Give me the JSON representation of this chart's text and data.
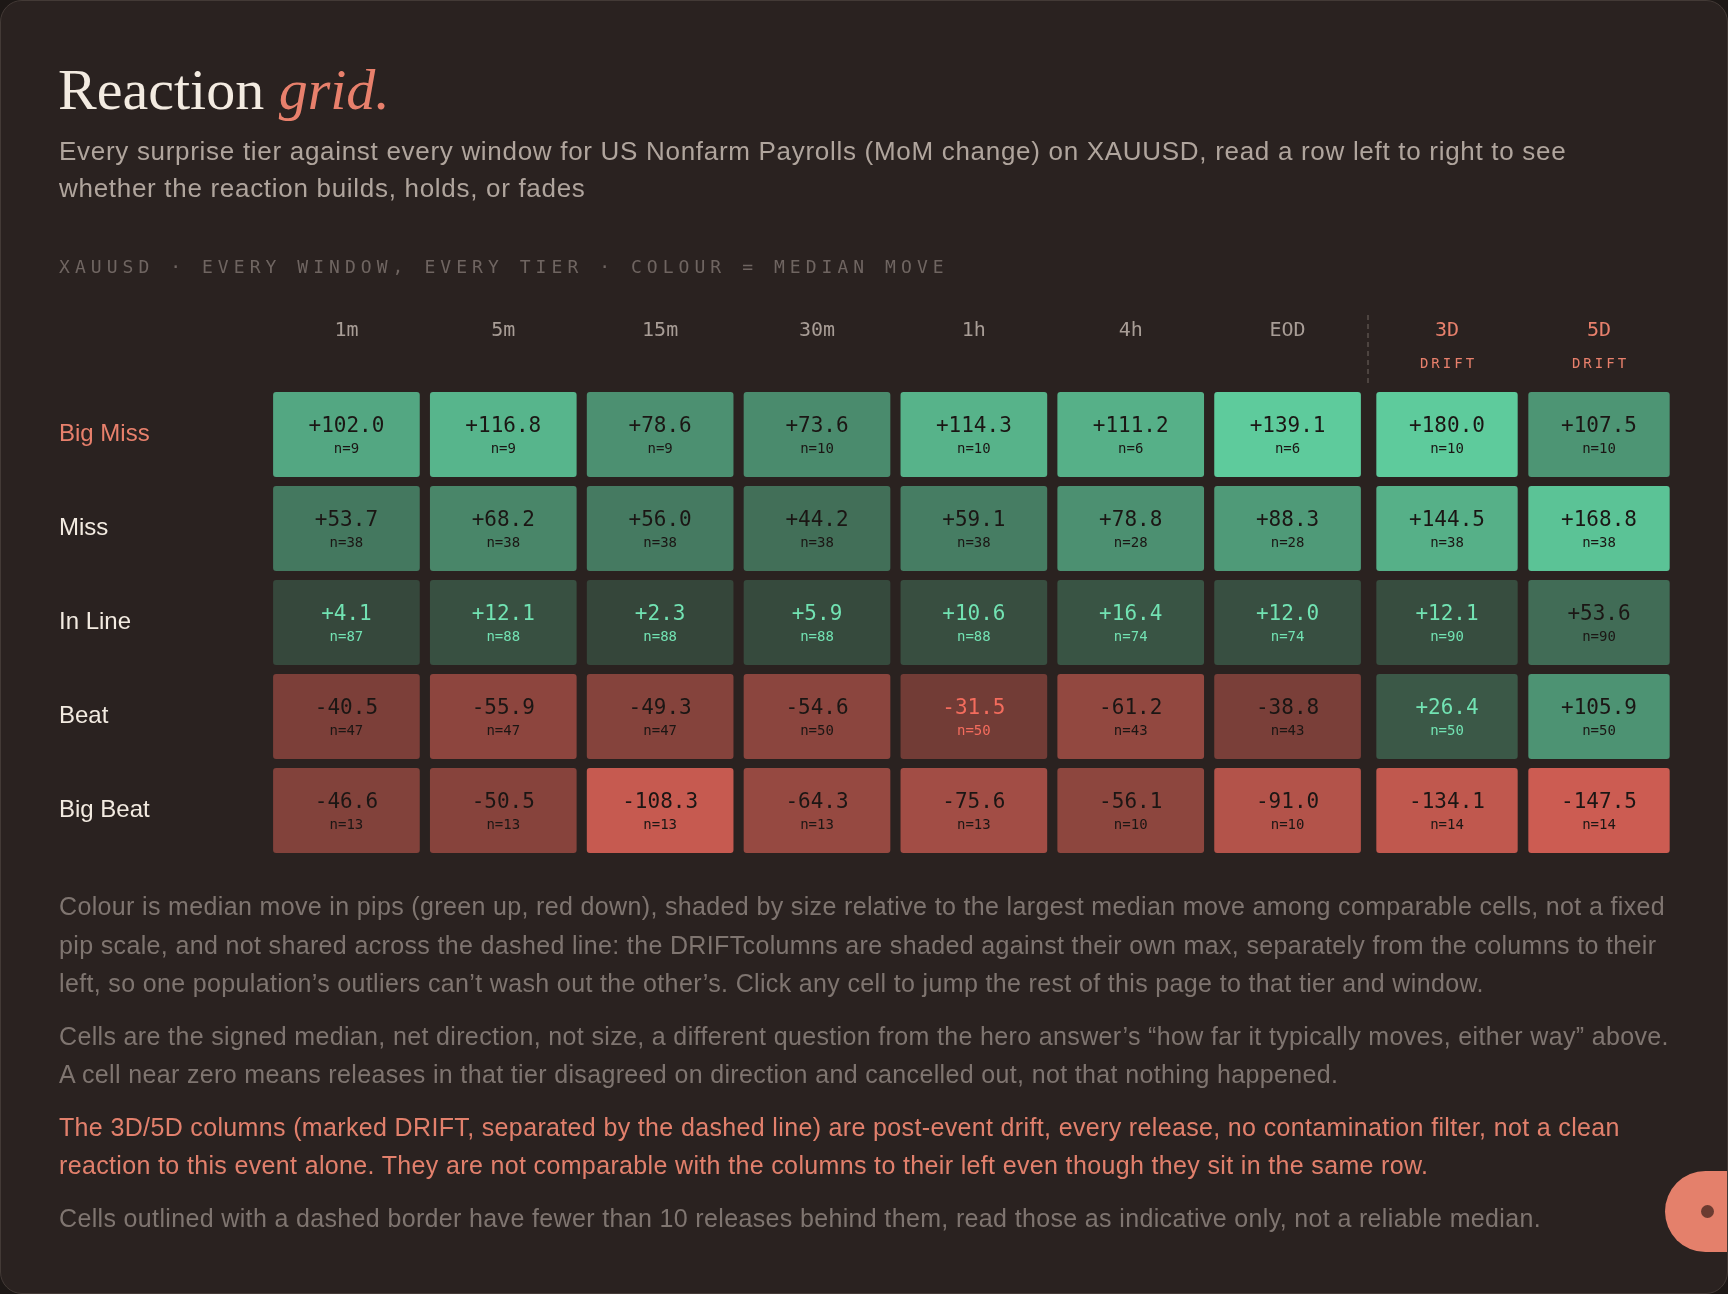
{
  "chart_data": [
    {
      "type": "heatmap",
      "title": "Reaction grid.",
      "subtitle": "Every surprise tier against every window for US Nonfarm Payrolls (MoM change) on XAUUSD, read a row left to right to see whether the reaction builds, holds, or fades",
      "categories": [
        "1m",
        "5m",
        "15m",
        "30m",
        "1h",
        "4h",
        "EOD"
      ],
      "y_categories": [
        "Big Miss",
        "Miss",
        "In Line",
        "Beat",
        "Big Beat"
      ],
      "cells": [
        [
          102.0,
          116.8,
          78.6,
          73.6,
          114.3,
          111.2,
          139.1
        ],
        [
          53.7,
          68.2,
          56.0,
          44.2,
          59.1,
          78.8,
          88.3
        ],
        [
          4.1,
          12.1,
          2.3,
          5.9,
          10.6,
          16.4,
          12.0
        ],
        [
          -40.5,
          -55.9,
          -49.3,
          -54.6,
          -31.5,
          -61.2,
          -38.8
        ],
        [
          -46.6,
          -50.5,
          -108.3,
          -64.3,
          -75.6,
          -56.1,
          -91.0
        ]
      ],
      "cell_labels": [
        [
          "+102.0",
          "+116.8",
          "+78.6",
          "+73.6",
          "+114.3",
          "+111.2",
          "+139.1"
        ],
        [
          "+53.7",
          "+68.2",
          "+56.0",
          "+44.2",
          "+59.1",
          "+78.8",
          "+88.3"
        ],
        [
          "+4.1",
          "+12.1",
          "+2.3",
          "+5.9",
          "+10.6",
          "+16.4",
          "+12.0"
        ],
        [
          "-40.5",
          "-55.9",
          "-49.3",
          "-54.6",
          "-31.5",
          "-61.2",
          "-38.8"
        ],
        [
          "-46.6",
          "-50.5",
          "-108.3",
          "-64.3",
          "-75.6",
          "-56.1",
          "-91.0"
        ]
      ],
      "annotations": [
        "XAUUSD · EVERY WINDOW, EVERY TIER · COLOUR = MEDIAN MOVE",
        "Colour is median move in pips (green up, red down), shaded by size relative to the largest median move among comparable cells, not a fixed pip scale, and not shared across the dashed line: the DRIFTcolumns are shaded against their own max, separately from the columns to their left, so one population’s outliers can’t wash out the other’s. Click any cell to jump the rest of this page to that tier and window.",
        "Cells are the signed median, net direction, not size, a different question from the hero answer’s “how far it typically moves, either way” above. A cell near zero means releases in that tier disagreed on direction and cancelled out, not that nothing happened.",
        "The 3D/5D columns (marked DRIFT, separated by the dashed line) are post-event drift, every release, no contamination filter, not a clean reaction to this event alone. They are not comparable with the columns to their left even though they sit in the same row.",
        "Cells outlined with a dashed border have fewer than 10 releases behind them, read those as indicative only, not a reliable median.",
        "n=9",
        "n=9",
        "n=9",
        "n=10",
        "n=10",
        "n=6",
        "n=6",
        "n=38",
        "n=38",
        "n=38",
        "n=38",
        "n=38",
        "n=28",
        "n=28",
        "n=87",
        "n=88",
        "n=88",
        "n=88",
        "n=88",
        "n=74",
        "n=74",
        "n=47",
        "n=47",
        "n=47",
        "n=50",
        "n=50",
        "n=43",
        "n=43",
        "n=13",
        "n=13",
        "n=13",
        "n=13",
        "n=13",
        "n=10",
        "n=10"
      ]
    },
    {
      "type": "heatmap",
      "categories": [
        "3D\nDRIFT",
        "5D\nDRIFT"
      ],
      "y_categories": [
        null,
        null,
        null,
        null,
        null
      ],
      "cells": [
        [
          180.0,
          107.5
        ],
        [
          144.5,
          168.8
        ],
        [
          12.1,
          53.6
        ],
        [
          26.4,
          105.9
        ],
        [
          -134.1,
          -147.5
        ]
      ],
      "cell_labels": [
        [
          "+180.0",
          "+107.5"
        ],
        [
          "+144.5",
          "+168.8"
        ],
        [
          "+12.1",
          "+53.6"
        ],
        [
          "+26.4",
          "+105.9"
        ],
        [
          "-134.1",
          "-147.5"
        ]
      ],
      "annotations": [
        "n=10",
        "n=10",
        "n=38",
        "n=38",
        "n=90",
        "n=90",
        "n=50",
        "n=50",
        "n=14",
        "n=14"
      ]
    }
  ]
}
